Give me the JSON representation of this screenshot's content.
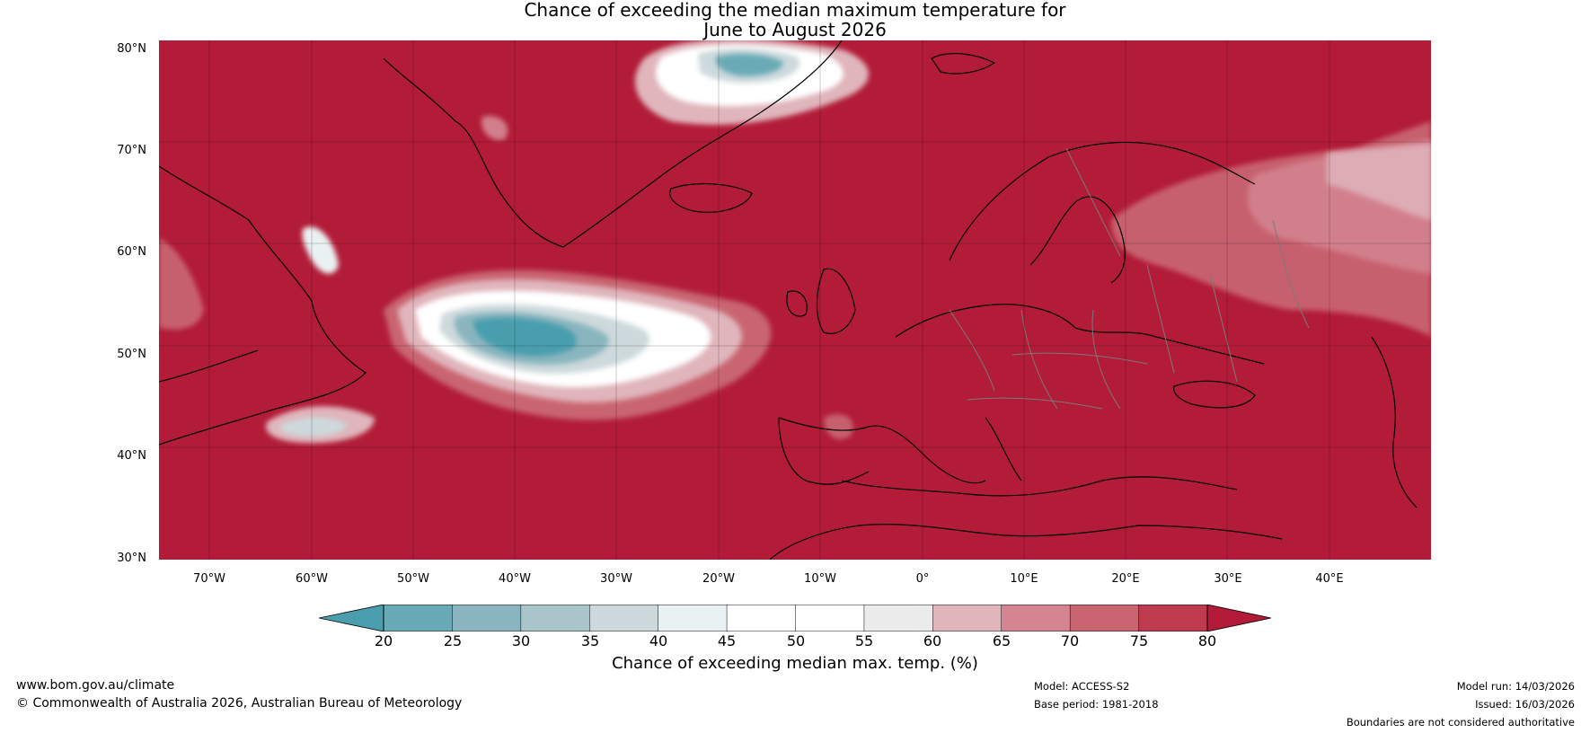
{
  "title": {
    "line1": "Chance of exceeding the median maximum temperature for",
    "line2": "June to August 2026"
  },
  "map": {
    "lat_labels": [
      "80°N",
      "70°N",
      "60°N",
      "50°N",
      "40°N",
      "30°N"
    ],
    "lon_labels": [
      "70°W",
      "60°W",
      "50°W",
      "40°W",
      "30°W",
      "20°W",
      "10°W",
      "0°",
      "10°E",
      "20°E",
      "30°E",
      "40°E"
    ]
  },
  "colorbar": {
    "ticks": [
      "20",
      "25",
      "30",
      "35",
      "40",
      "45",
      "50",
      "55",
      "60",
      "65",
      "70",
      "75",
      "80"
    ],
    "colors": [
      "#4a9eae",
      "#6aaab6",
      "#8ab5bf",
      "#a9c5ca",
      "#cdd9dc",
      "#e9f1f2",
      "#ffffff",
      "#ffffff",
      "#ecebec",
      "#e0b5bc",
      "#d48591",
      "#c96571",
      "#be3a4e",
      "#b21c38"
    ],
    "label": "Chance of exceeding median max. temp. (%)"
  },
  "footer": {
    "website": "www.bom.gov.au/climate",
    "copyright": "© Commonwealth of Australia 2026, Australian Bureau of Meteorology",
    "model": "Model: ACCESS-S2",
    "base_period": "Base period: 1981-2018",
    "model_run": "Model run: 14/03/2026",
    "issued": "Issued: 16/03/2026",
    "disclaimer": "Boundaries are not considered authoritative"
  }
}
